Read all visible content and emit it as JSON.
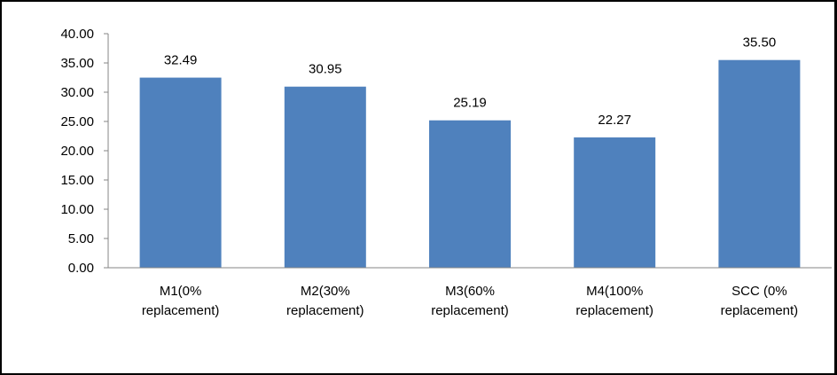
{
  "chart_data": {
    "type": "bar",
    "title": "",
    "xlabel": "",
    "ylabel": "",
    "categories": [
      [
        "M1(0%",
        "replacement)"
      ],
      [
        "M2(30%",
        "replacement)"
      ],
      [
        "M3(60%",
        "replacement)"
      ],
      [
        "M4(100%",
        "replacement)"
      ],
      [
        "SCC (0%",
        "replacement)"
      ]
    ],
    "values": [
      32.49,
      30.95,
      25.19,
      22.27,
      35.5
    ],
    "data_labels": [
      "32.49",
      "30.95",
      "25.19",
      "22.27",
      "35.50"
    ],
    "ylim": [
      0,
      40
    ],
    "yticks": [
      "0.00",
      "5.00",
      "10.00",
      "15.00",
      "20.00",
      "25.00",
      "30.00",
      "35.00",
      "40.00"
    ],
    "grid": false,
    "legend": "none",
    "bar_color": "#4F81BD"
  }
}
